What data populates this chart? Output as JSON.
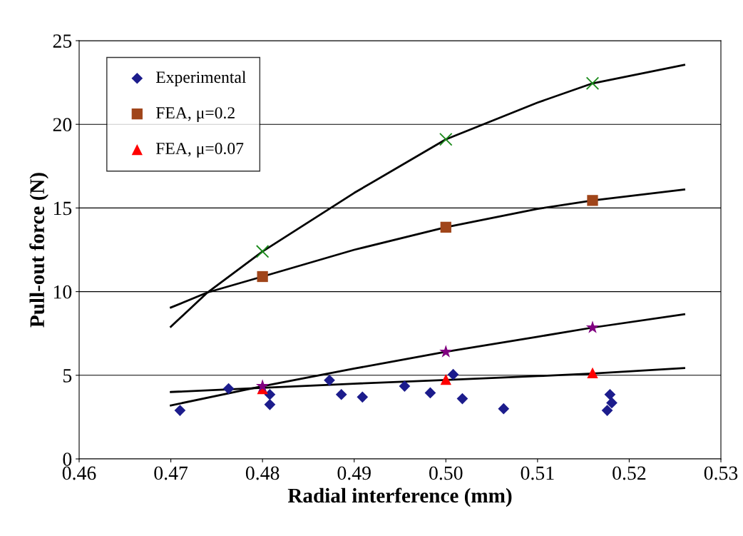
{
  "chart_data": {
    "type": "scatter",
    "xlabel": "Radial interference (mm)",
    "ylabel": "Pull-out force (N)",
    "xlim": [
      0.46,
      0.53
    ],
    "ylim": [
      0,
      25
    ],
    "xticks": [
      {
        "value": 0.46,
        "label": "0.46"
      },
      {
        "value": 0.47,
        "label": "0.47"
      },
      {
        "value": 0.48,
        "label": "0.48"
      },
      {
        "value": 0.49,
        "label": "0.49"
      },
      {
        "value": 0.5,
        "label": "0.50"
      },
      {
        "value": 0.51,
        "label": "0.51"
      },
      {
        "value": 0.52,
        "label": "0.52"
      },
      {
        "value": 0.53,
        "label": "0.53"
      }
    ],
    "yticks": [
      0,
      5,
      10,
      15,
      20,
      25
    ],
    "grid": "y",
    "legend": "top left",
    "series": [
      {
        "name": "Experimental",
        "marker": "diamond",
        "color": "#1c1c8c",
        "x": [
          0.471,
          0.4763,
          0.4808,
          0.4808,
          0.4873,
          0.4886,
          0.4909,
          0.4955,
          0.4983,
          0.5008,
          0.5018,
          0.5063,
          0.5176,
          0.5179,
          0.5181
        ],
        "values": [
          2.9,
          4.2,
          3.85,
          3.25,
          4.7,
          3.85,
          3.7,
          4.35,
          3.95,
          5.05,
          3.6,
          3.0,
          2.9,
          3.85,
          3.35
        ]
      },
      {
        "name": "FEA, μ=0.2",
        "marker": "square",
        "color": "#a0451a",
        "x": [
          0.48,
          0.5,
          0.516
        ],
        "values": [
          10.9,
          13.85,
          15.45
        ]
      },
      {
        "name": "FEA, μ=0.07",
        "marker": "triangle",
        "color": "#ff0000",
        "x": [
          0.48,
          0.5,
          0.516
        ],
        "values": [
          4.2,
          4.75,
          5.15
        ]
      },
      {
        "marker": "cross",
        "color": "#1a8a1a",
        "x": [
          0.48,
          0.5,
          0.516
        ],
        "values": [
          12.4,
          19.1,
          22.45
        ]
      },
      {
        "marker": "star",
        "color": "#800080",
        "x": [
          0.48,
          0.5,
          0.516
        ],
        "values": [
          4.35,
          6.4,
          7.85
        ]
      },
      {
        "type": "line",
        "marker": "none",
        "line_style": "solid",
        "color": "#000000",
        "x": [
          0.47,
          0.474,
          0.48,
          0.49,
          0.5,
          0.51,
          0.516,
          0.526
        ],
        "values": [
          7.9,
          9.95,
          12.4,
          15.9,
          19.1,
          21.3,
          22.45,
          23.55
        ]
      },
      {
        "type": "line",
        "marker": "none",
        "line_style": "solid",
        "color": "#000000",
        "x": [
          0.47,
          0.474,
          0.48,
          0.49,
          0.5,
          0.51,
          0.516,
          0.526
        ],
        "values": [
          9.05,
          9.95,
          10.9,
          12.5,
          13.85,
          14.95,
          15.45,
          16.1
        ]
      },
      {
        "type": "line",
        "marker": "none",
        "line_style": "solid",
        "color": "#000000",
        "x": [
          0.47,
          0.48,
          0.49,
          0.5,
          0.51,
          0.516,
          0.526
        ],
        "values": [
          3.2,
          4.35,
          5.4,
          6.4,
          7.3,
          7.85,
          8.65
        ]
      },
      {
        "type": "line",
        "marker": "none",
        "line_style": "solid",
        "color": "#000000",
        "x": [
          0.47,
          0.48,
          0.49,
          0.5,
          0.51,
          0.516,
          0.526
        ],
        "values": [
          4.0,
          4.25,
          4.5,
          4.72,
          4.95,
          5.1,
          5.43
        ]
      }
    ]
  }
}
